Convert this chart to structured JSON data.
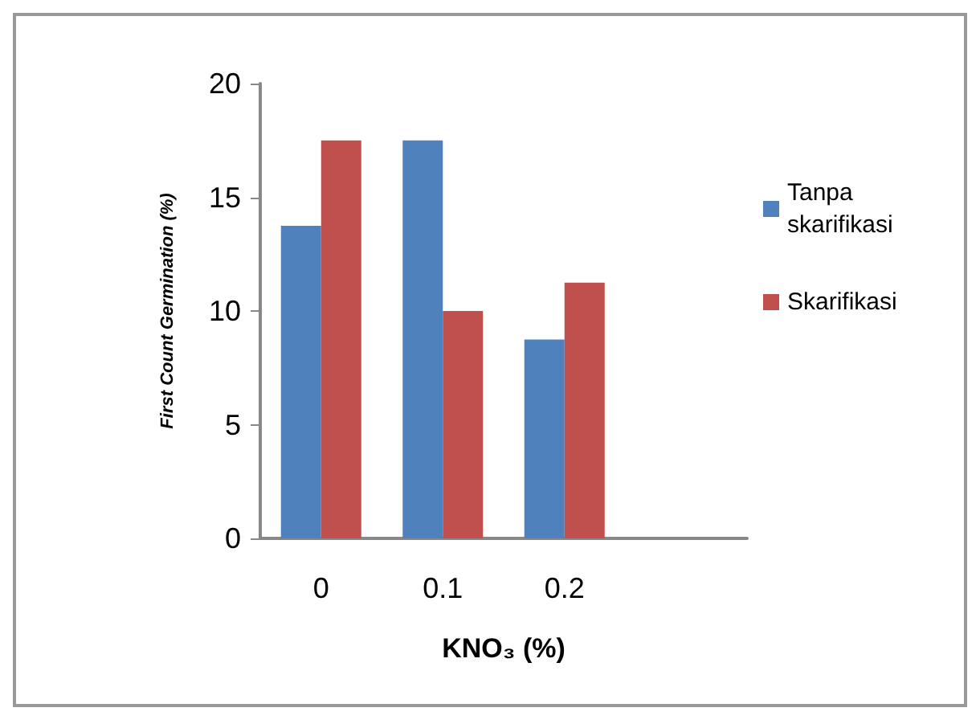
{
  "chart_data": {
    "type": "bar",
    "xlabel": "KNO₃ (%)",
    "ylabel": "First Count Germination (%)",
    "categories": [
      "0",
      "0.1",
      "0.2",
      null
    ],
    "series": [
      {
        "name": "Tanpa skarifikasi",
        "color": "#4f81bd",
        "values": [
          13.75,
          17.5,
          8.75,
          null
        ]
      },
      {
        "name": "Skarifikasi",
        "color": "#c0504d",
        "values": [
          17.5,
          10,
          11.25,
          null
        ]
      }
    ],
    "ylim": [
      0,
      20
    ],
    "yticks": [
      0,
      5,
      10,
      15,
      20
    ],
    "grid": false,
    "legend": "right"
  }
}
